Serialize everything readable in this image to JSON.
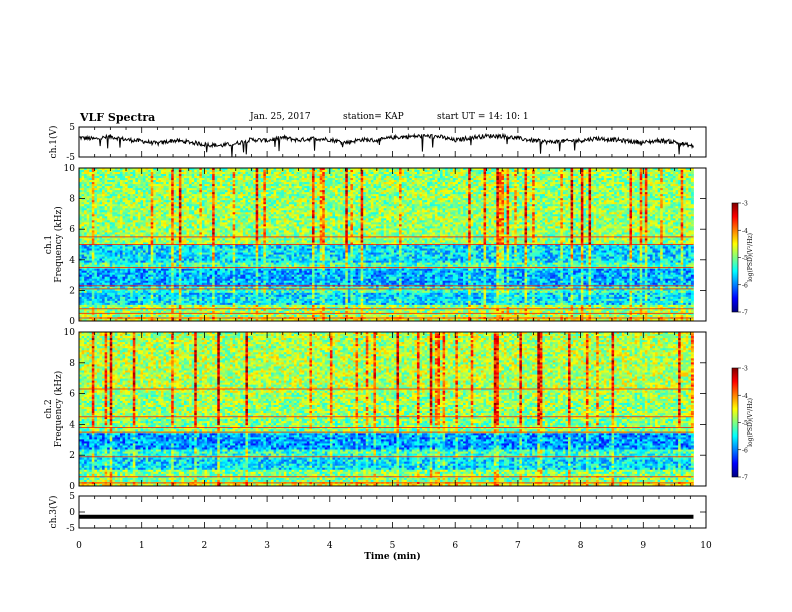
{
  "header": {
    "title": "VLF Spectra",
    "date": "Jan. 25, 2017",
    "station": "station= KAP",
    "start_ut": "start UT =   14: 10: 1"
  },
  "colors": {
    "jet": [
      "#000080",
      "#0000ff",
      "#0080ff",
      "#00ffff",
      "#80ff80",
      "#ffff00",
      "#ff8000",
      "#ff0000",
      "#800000"
    ],
    "trace": "#000000",
    "background": "#ffffff"
  },
  "chart_data": [
    {
      "type": "line",
      "panel": "ch1-waveform",
      "ylabel": "ch.1(V)",
      "ylim": [
        -5,
        5
      ],
      "yticks": [
        "5",
        "-5"
      ],
      "xlim": [
        0,
        10
      ],
      "series": [
        {
          "x": [
            0,
            0.25,
            0.5,
            0.75,
            1.0,
            1.25,
            1.5,
            1.75,
            2.0,
            2.25,
            2.5,
            2.75,
            3.0,
            3.25,
            3.5,
            3.75,
            4.0,
            4.25,
            4.5,
            4.75,
            5.0,
            5.25,
            5.5,
            5.75,
            6.0,
            6.25,
            6.5,
            6.75,
            7.0,
            7.25,
            7.5,
            7.75,
            8.0,
            8.25,
            8.5,
            8.75,
            9.0,
            9.25,
            9.5,
            9.8
          ],
          "values": [
            1.5,
            1.0,
            1.8,
            0.8,
            0.3,
            -0.5,
            0.5,
            0.0,
            -0.8,
            -1.2,
            -0.5,
            0.8,
            0.5,
            1.5,
            0.6,
            1.2,
            0.8,
            -0.2,
            0.8,
            0.5,
            1.5,
            1.8,
            2.0,
            1.8,
            0.5,
            1.5,
            2.0,
            2.0,
            1.2,
            0.5,
            0.0,
            0.3,
            0.5,
            1.2,
            0.8,
            0.3,
            -0.2,
            0.5,
            0.0,
            -1.5
          ]
        }
      ]
    },
    {
      "type": "heatmap",
      "panel": "ch1-spectrogram",
      "ylabel": "ch.1\nFrequency (kHz)",
      "ylabel_line1": "ch.1",
      "ylabel_line2": "Frequency (kHz)",
      "ylim": [
        0,
        10
      ],
      "yticks": [
        "0",
        "2",
        "4",
        "6",
        "8",
        "10"
      ],
      "xlim": [
        0,
        10
      ],
      "colorbar": {
        "label": "log(PSD)(V²/Hz)",
        "range": [
          -7,
          -3
        ],
        "ticks": [
          "-3",
          "-4",
          "-5",
          "-6",
          "-7"
        ]
      },
      "band_levels": [
        {
          "f": [
            0.0,
            0.3
          ],
          "level": -4.6
        },
        {
          "f": [
            0.3,
            1.0
          ],
          "level": -4.9
        },
        {
          "f": [
            1.0,
            1.8
          ],
          "level": -5.6
        },
        {
          "f": [
            1.8,
            2.3
          ],
          "level": -5.3
        },
        {
          "f": [
            2.3,
            3.4
          ],
          "level": -5.8
        },
        {
          "f": [
            3.4,
            3.8
          ],
          "level": -5.2
        },
        {
          "f": [
            3.8,
            5.0
          ],
          "level": -5.6
        },
        {
          "f": [
            5.0,
            10.0
          ],
          "level": -4.9
        }
      ],
      "bright_lines_khz": [
        0.2,
        0.5,
        0.8,
        2.1,
        2.3,
        3.5,
        5.0,
        5.5
      ]
    },
    {
      "type": "heatmap",
      "panel": "ch2-spectrogram",
      "ylabel": "ch.2\nFrequency (kHz)",
      "ylabel_line1": "ch.2",
      "ylabel_line2": "Frequency (kHz)",
      "ylim": [
        0,
        10
      ],
      "yticks": [
        "0",
        "2",
        "4",
        "6",
        "8",
        "10"
      ],
      "xlim": [
        0,
        10
      ],
      "colorbar": {
        "label": "log(PSD)(V²/Hz)",
        "range": [
          -7,
          -3
        ],
        "ticks": [
          "-3",
          "-4",
          "-5",
          "-6",
          "-7"
        ]
      },
      "band_levels": [
        {
          "f": [
            0.0,
            0.3
          ],
          "level": -4.6
        },
        {
          "f": [
            0.3,
            1.0
          ],
          "level": -5.0
        },
        {
          "f": [
            1.0,
            1.8
          ],
          "level": -5.6
        },
        {
          "f": [
            1.8,
            2.4
          ],
          "level": -5.3
        },
        {
          "f": [
            2.4,
            3.4
          ],
          "level": -5.9
        },
        {
          "f": [
            3.4,
            4.4
          ],
          "level": -5.0
        },
        {
          "f": [
            4.4,
            6.0
          ],
          "level": -4.9
        },
        {
          "f": [
            6.0,
            10.0
          ],
          "level": -4.8
        }
      ],
      "bright_lines_khz": [
        0.2,
        0.6,
        1.9,
        3.5,
        3.8,
        4.5,
        6.3
      ]
    },
    {
      "type": "line",
      "panel": "ch3-waveform",
      "ylabel": "ch.3(V)",
      "ylim": [
        -5,
        5
      ],
      "yticks": [
        "5",
        "0",
        "-5"
      ],
      "xlim": [
        0,
        10
      ],
      "xlabel": "Time (min)",
      "xticks": [
        "0",
        "1",
        "2",
        "3",
        "4",
        "5",
        "6",
        "7",
        "8",
        "9",
        "10"
      ],
      "series": [
        {
          "x": [
            0,
            9.8
          ],
          "values": [
            -1.5,
            -1.5
          ]
        }
      ]
    }
  ]
}
